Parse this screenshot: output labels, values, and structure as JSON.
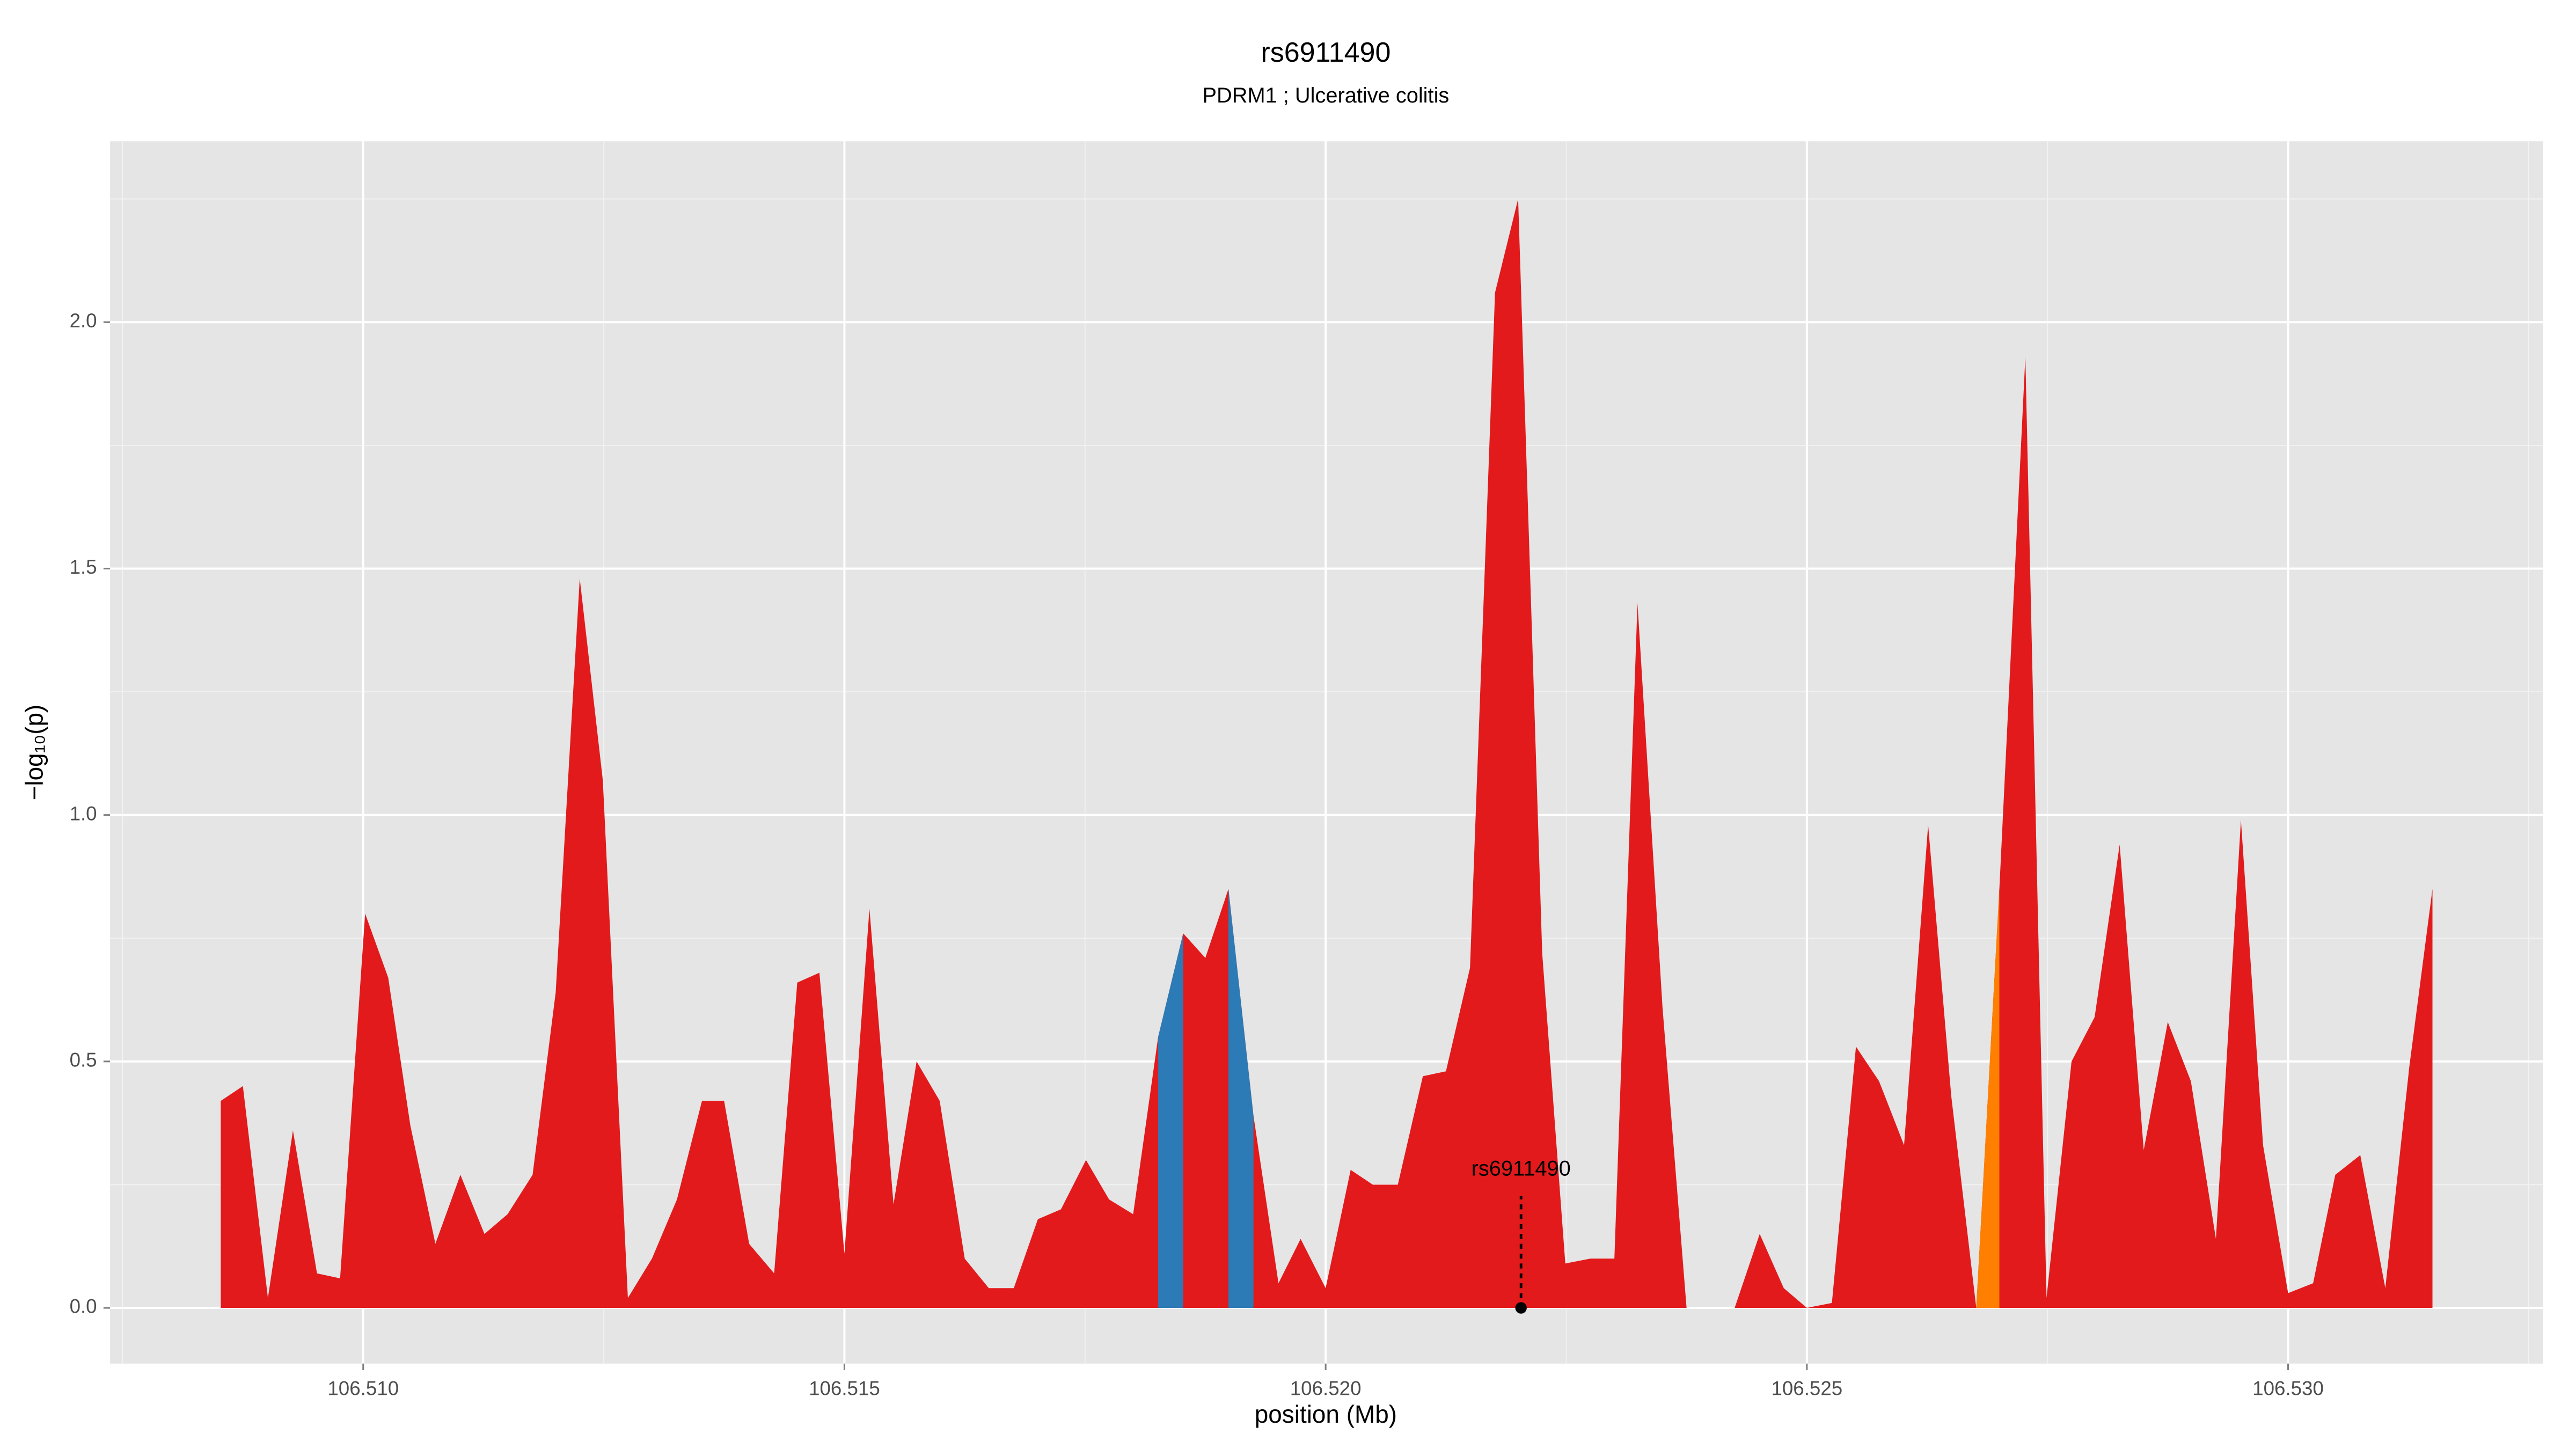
{
  "chart_data": {
    "type": "area",
    "title": "rs6911490",
    "subtitle": "PDRM1 ; Ulcerative colitis",
    "x_label": "position (Mb)",
    "y_label": "−log₁₀(p)",
    "x": [
      106.50852,
      106.50875,
      106.50901,
      106.50927,
      106.50952,
      106.50976,
      106.51002,
      106.51026,
      106.51049,
      106.51075,
      106.51101,
      106.51126,
      106.5115,
      106.51176,
      106.512,
      106.51225,
      106.51249,
      106.51275,
      106.513,
      106.51326,
      106.51352,
      106.51375,
      106.51401,
      106.51427,
      106.51451,
      106.51474,
      106.515,
      106.51526,
      106.51551,
      106.51575,
      106.51599,
      106.51625,
      106.5165,
      106.51676,
      106.51701,
      106.51725,
      106.51751,
      106.51775,
      106.518,
      106.51826,
      106.51852,
      106.51875,
      106.51899,
      106.51925,
      106.51951,
      106.51974,
      106.52,
      106.52026,
      106.52049,
      106.52075,
      106.52101,
      106.52125,
      106.5215,
      106.52176,
      106.522,
      106.52225,
      106.52249,
      106.52275,
      106.523,
      106.52324,
      106.5235,
      106.52375,
      106.52399,
      106.52425,
      106.52451,
      106.52476,
      106.525,
      106.52526,
      106.52551,
      106.52575,
      106.52601,
      106.52626,
      106.5265,
      106.52676,
      106.527,
      106.52727,
      106.52749,
      106.52775,
      106.52799,
      106.52825,
      106.5285,
      106.52875,
      106.52899,
      106.52925,
      106.52951,
      106.52974,
      106.53,
      106.53026,
      106.53049,
      106.53075,
      106.53101,
      106.53126,
      106.5315
    ],
    "series": [
      {
        "color": "#e31a1c",
        "values": [
          0.42,
          0.45,
          0.02,
          0.36,
          0.07,
          0.06,
          0.8,
          0.67,
          0.37,
          0.13,
          0.27,
          0.15,
          0.19,
          0.27,
          0.64,
          1.48,
          1.07,
          0.02,
          0.1,
          0.22,
          0.42,
          0.42,
          0.13,
          0.07,
          0.66,
          0.68,
          0.11,
          0.81,
          0.21,
          0.5,
          0.42,
          0.1,
          0.04,
          0.04,
          0.18,
          0.2,
          0.3,
          0.22,
          0.19,
          0.55,
          0.76,
          0.71,
          0.85,
          0.39,
          0.05,
          0.14,
          0.04,
          0.28,
          0.25,
          0.25,
          0.47,
          0.48,
          0.69,
          2.06,
          2.25,
          0.72,
          0.09,
          0.1,
          0.1,
          1.43,
          0.61,
          0,
          0,
          0,
          0.15,
          0.04,
          0,
          0.01,
          0.53,
          0.46,
          0.33,
          0.98,
          0.43,
          0,
          0.85,
          1.93,
          0.02,
          0.5,
          0.59,
          0.94,
          0.32,
          0.58,
          0.46,
          0.14,
          0.99,
          0.33,
          0.03,
          0.05,
          0.27,
          0.31,
          0.04,
          0.49,
          0.85
        ]
      },
      {
        "color": "#2c7bb6",
        "values": [
          null,
          null,
          null,
          null,
          null,
          null,
          null,
          null,
          null,
          null,
          null,
          null,
          null,
          null,
          null,
          null,
          null,
          null,
          null,
          null,
          null,
          null,
          null,
          null,
          null,
          null,
          null,
          null,
          null,
          null,
          null,
          null,
          null,
          null,
          null,
          null,
          null,
          null,
          null,
          0.55,
          0.76,
          null,
          0.85,
          0.39,
          null,
          null,
          null,
          null,
          null,
          null,
          null,
          null,
          null,
          null,
          null,
          null,
          null,
          null,
          null,
          null,
          null,
          null,
          null,
          null,
          null,
          null,
          null,
          null,
          null,
          null,
          null,
          null,
          null,
          null,
          null,
          null,
          null,
          null,
          null,
          null,
          null,
          null,
          null,
          null,
          null,
          null,
          null,
          null,
          null,
          null,
          null,
          null,
          null
        ]
      },
      {
        "color": "#ff7f00",
        "values": [
          null,
          null,
          null,
          null,
          null,
          null,
          null,
          null,
          null,
          null,
          null,
          null,
          null,
          null,
          null,
          null,
          null,
          null,
          null,
          null,
          null,
          null,
          null,
          null,
          null,
          null,
          null,
          null,
          null,
          null,
          null,
          null,
          null,
          null,
          null,
          null,
          null,
          null,
          null,
          null,
          null,
          null,
          null,
          null,
          null,
          null,
          null,
          null,
          null,
          null,
          null,
          null,
          null,
          null,
          null,
          null,
          null,
          null,
          null,
          null,
          null,
          null,
          null,
          null,
          null,
          null,
          null,
          null,
          null,
          null,
          null,
          null,
          null,
          0,
          0.85,
          null,
          null,
          null,
          null,
          null,
          null,
          null,
          null,
          null,
          null,
          null,
          null,
          null,
          null,
          null,
          null,
          null,
          null
        ]
      }
    ],
    "annotation": {
      "label": "rs6911490",
      "x": 106.52203,
      "y": 0
    },
    "xlim": [
      106.50737,
      106.53265
    ],
    "ylim": [
      -0.113,
      2.367
    ],
    "xticks": [
      {
        "value": 106.51,
        "label": "106.510"
      },
      106.515,
      {
        "value": 106.52,
        "label": "106.520"
      },
      106.525,
      {
        "value": 106.53,
        "label": "106.530"
      }
    ],
    "yticks": [
      {
        "value": 0,
        "label": "0.0"
      },
      0.5,
      {
        "value": 1,
        "label": "1.0"
      },
      1.5,
      {
        "value": 2,
        "label": "2.0"
      }
    ],
    "grid": true
  }
}
